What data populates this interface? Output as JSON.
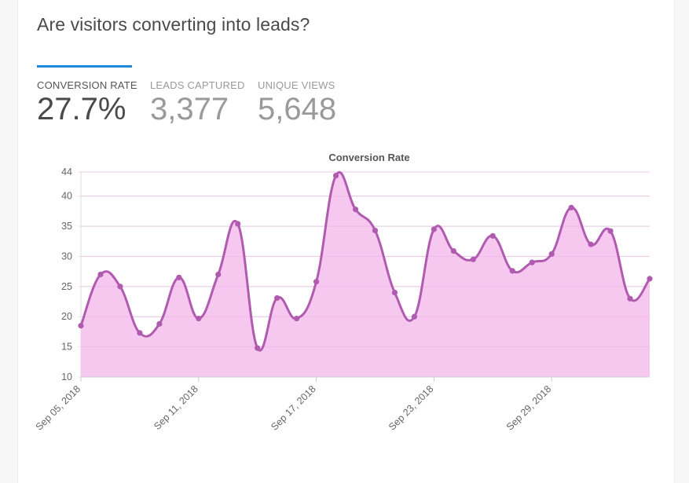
{
  "header": {
    "title": "Are visitors converting into leads?"
  },
  "metrics": [
    {
      "label": "CONVERSION RATE",
      "value": "27.7%"
    },
    {
      "label": "LEADS CAPTURED",
      "value": "3,377"
    },
    {
      "label": "UNIQUE VIEWS",
      "value": "5,648"
    }
  ],
  "colors": {
    "accent": "#1e88d8",
    "line": "#b05bb0",
    "fill": "#f5c4ee",
    "grid": "#e6e6e6"
  },
  "chart_data": {
    "type": "area",
    "title": "Conversion Rate",
    "xlabel": "",
    "ylabel": "",
    "ylim": [
      10,
      44
    ],
    "yticks": [
      10,
      15,
      20,
      25,
      30,
      35,
      40,
      44
    ],
    "x": [
      "Sep 05, 2018",
      "Sep 06, 2018",
      "Sep 07, 2018",
      "Sep 08, 2018",
      "Sep 09, 2018",
      "Sep 10, 2018",
      "Sep 11, 2018",
      "Sep 12, 2018",
      "Sep 13, 2018",
      "Sep 14, 2018",
      "Sep 15, 2018",
      "Sep 16, 2018",
      "Sep 17, 2018",
      "Sep 18, 2018",
      "Sep 19, 2018",
      "Sep 20, 2018",
      "Sep 21, 2018",
      "Sep 22, 2018",
      "Sep 23, 2018",
      "Sep 24, 2018",
      "Sep 25, 2018",
      "Sep 26, 2018",
      "Sep 27, 2018",
      "Sep 28, 2018",
      "Sep 29, 2018",
      "Sep 30, 2018",
      "Oct 01, 2018",
      "Oct 02, 2018",
      "Oct 03, 2018",
      "Oct 04, 2018"
    ],
    "xtick_labels": [
      "Sep 05, 2018",
      "Sep 11, 2018",
      "Sep 17, 2018",
      "Sep 23, 2018",
      "Sep 29, 2018"
    ],
    "series": [
      {
        "values": [
          18.5,
          27.0,
          25.0,
          17.3,
          18.8,
          26.5,
          19.7,
          27.0,
          35.4,
          14.8,
          23.1,
          19.7,
          25.8,
          43.4,
          37.8,
          34.3,
          24.0,
          20.0,
          34.5,
          30.9,
          29.5,
          33.4,
          27.6,
          29.0,
          30.4,
          38.1,
          32.0,
          34.2,
          23.0,
          26.3
        ]
      }
    ]
  }
}
